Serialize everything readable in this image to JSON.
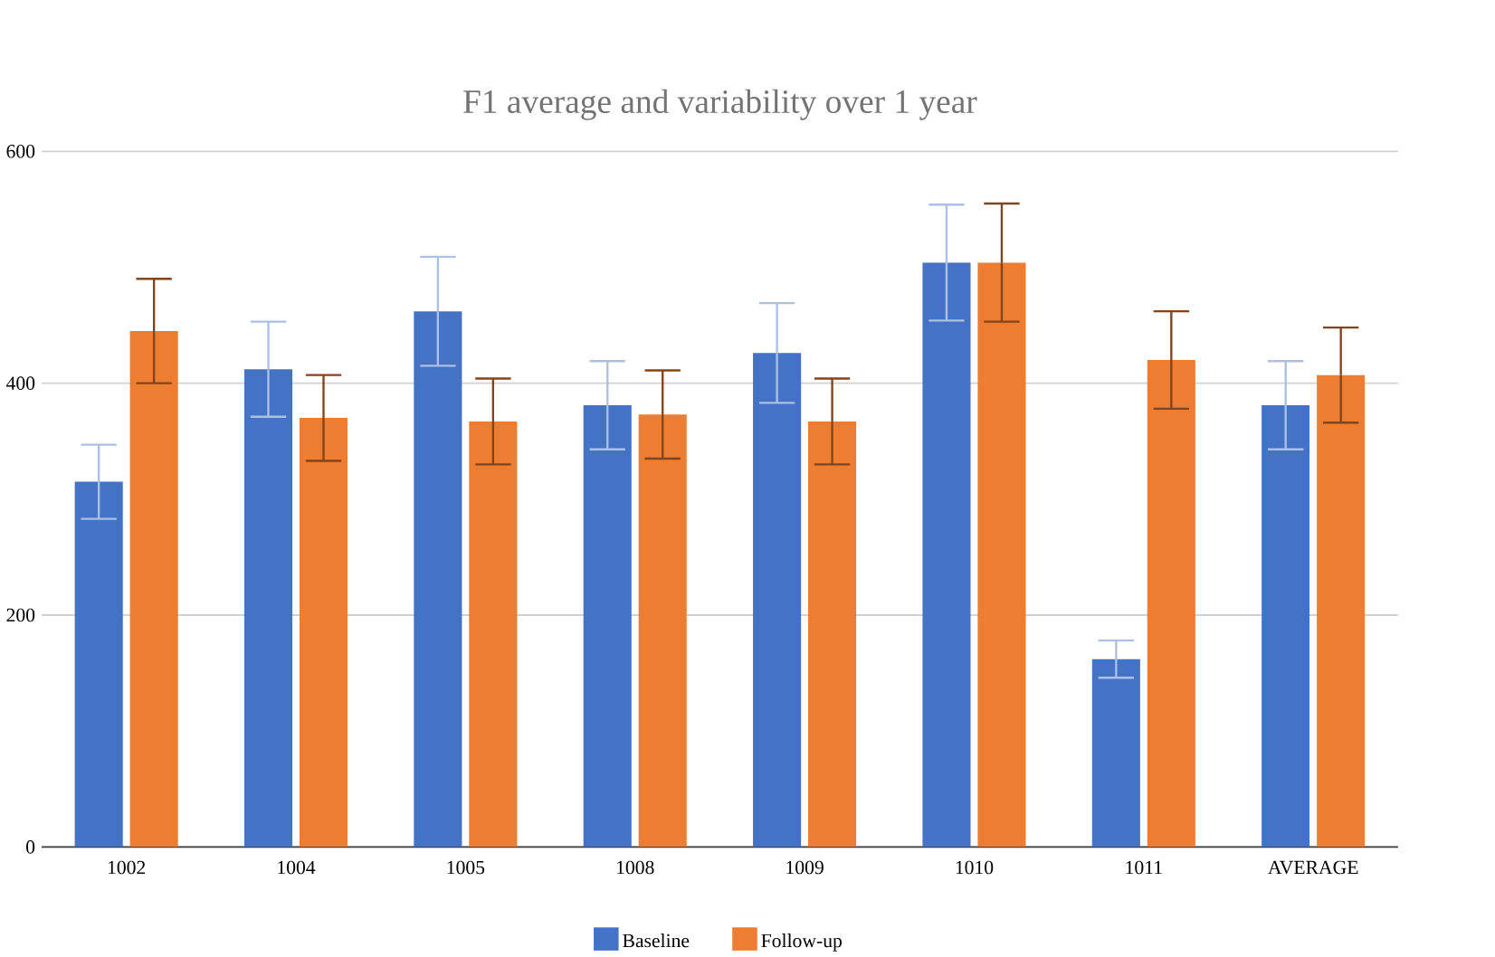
{
  "chart_data": {
    "type": "bar",
    "title": "F1 average and variability over 1 year",
    "categories": [
      "1002",
      "1004",
      "1005",
      "1008",
      "1009",
      "1010",
      "1011",
      "AVERAGE"
    ],
    "series": [
      {
        "name": "Baseline",
        "color": "#4472c4",
        "values": [
          315,
          412,
          462,
          381,
          426,
          504,
          162,
          381
        ],
        "errors": [
          32,
          41,
          47,
          38,
          43,
          50,
          16,
          38
        ]
      },
      {
        "name": "Follow-up",
        "color": "#ed7d31",
        "values": [
          445,
          370,
          367,
          373,
          367,
          504,
          420,
          407
        ],
        "errors": [
          45,
          37,
          37,
          38,
          37,
          51,
          42,
          41
        ]
      }
    ],
    "ylim": [
      0,
      600
    ],
    "yticks": [
      0,
      200,
      400,
      600
    ],
    "grid": "y",
    "legend": "bottom"
  }
}
